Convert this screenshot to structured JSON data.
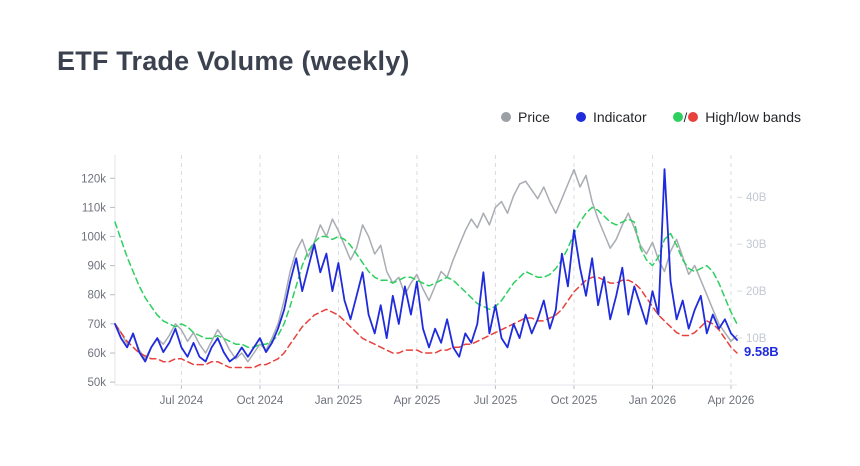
{
  "title": "ETF Trade Volume (weekly)",
  "legend": {
    "price": {
      "label": "Price",
      "color": "#9ba0a6"
    },
    "indicator": {
      "label": "Indicator",
      "color": "#1f2bdc"
    },
    "bands": {
      "label": "High/low bands",
      "separator": "/",
      "high_color": "#2dd05f",
      "low_color": "#e8413c"
    }
  },
  "chart_data": {
    "type": "line",
    "title": "ETF Trade Volume (weekly)",
    "x_unit": "week",
    "n_points": 104,
    "x_ticks": [
      {
        "label": "Jul 2024",
        "week": 11
      },
      {
        "label": "Oct 2024",
        "week": 24
      },
      {
        "label": "Jan 2025",
        "week": 37
      },
      {
        "label": "Apr 2025",
        "week": 50
      },
      {
        "label": "Jul 2025",
        "week": 63
      },
      {
        "label": "Oct 2025",
        "week": 76
      },
      {
        "label": "Jan 2026",
        "week": 89
      },
      {
        "label": "Apr 2026",
        "week": 102
      }
    ],
    "left_axis": {
      "unit": "k",
      "range": [
        49,
        128
      ],
      "ticks": [
        {
          "label": "50k",
          "value": 50
        },
        {
          "label": "60k",
          "value": 60
        },
        {
          "label": "70k",
          "value": 70
        },
        {
          "label": "80k",
          "value": 80
        },
        {
          "label": "90k",
          "value": 90
        },
        {
          "label": "100k",
          "value": 100
        },
        {
          "label": "110k",
          "value": 110
        },
        {
          "label": "120k",
          "value": 120
        }
      ]
    },
    "right_axis": {
      "unit": "B",
      "range": [
        0,
        49
      ],
      "ticks": [
        {
          "label": "10B",
          "value": 10
        },
        {
          "label": "20B",
          "value": 20
        },
        {
          "label": "30B",
          "value": 30
        },
        {
          "label": "40B",
          "value": 40
        }
      ]
    },
    "grid": {
      "vertical_dashed": true,
      "horizontal": false
    },
    "legend_position": "top-right",
    "series": [
      {
        "name": "Price",
        "axis": "left",
        "color": "#a9acb2",
        "style": "solid",
        "width": 1.5,
        "values": [
          70,
          67,
          63,
          66,
          61,
          58,
          62,
          65,
          63,
          66,
          70,
          68,
          64,
          67,
          63,
          60,
          64,
          68,
          65,
          61,
          58,
          60,
          57,
          60,
          63,
          61,
          65,
          70,
          78,
          88,
          95,
          99,
          93,
          98,
          104,
          100,
          106,
          102,
          97,
          92,
          96,
          104,
          100,
          94,
          97,
          88,
          84,
          86,
          80,
          84,
          87,
          82,
          78,
          83,
          88,
          86,
          92,
          97,
          102,
          106,
          103,
          108,
          104,
          110,
          112,
          108,
          114,
          118,
          119,
          116,
          113,
          117,
          112,
          108,
          113,
          118,
          123,
          117,
          121,
          112,
          106,
          101,
          96,
          99,
          104,
          108,
          103,
          97,
          94,
          98,
          92,
          88,
          95,
          99,
          93,
          87,
          90,
          85,
          80,
          75,
          70,
          67,
          64,
          66
        ]
      },
      {
        "name": "High band",
        "axis": "left",
        "color": "#2dd05f",
        "style": "dashed",
        "width": 1.5,
        "values": [
          105,
          99,
          93,
          88,
          83,
          79,
          76,
          73,
          71,
          70,
          69,
          70,
          69,
          67,
          66,
          65,
          65,
          66,
          65,
          64,
          63,
          63,
          62,
          62,
          63,
          63,
          64,
          66,
          70,
          76,
          83,
          90,
          95,
          98,
          100,
          100,
          99,
          100,
          99,
          97,
          94,
          91,
          88,
          86,
          85,
          85,
          84,
          85,
          86,
          86,
          85,
          84,
          83,
          84,
          85,
          86,
          85,
          83,
          81,
          79,
          77,
          76,
          75,
          76,
          78,
          81,
          84,
          86,
          88,
          87,
          86,
          86,
          87,
          89,
          92,
          96,
          101,
          105,
          108,
          110,
          109,
          107,
          105,
          104,
          105,
          106,
          105,
          96,
          92,
          90,
          93,
          99,
          101,
          97,
          92,
          89,
          88,
          89,
          90,
          88,
          84,
          79,
          74,
          70
        ]
      },
      {
        "name": "Low band",
        "axis": "left",
        "color": "#e8413c",
        "style": "dashed",
        "width": 1.5,
        "values": [
          70,
          67,
          64,
          62,
          60,
          59,
          58,
          58,
          57,
          57,
          58,
          58,
          57,
          56,
          56,
          56,
          57,
          57,
          56,
          55,
          55,
          55,
          55,
          55,
          56,
          56,
          57,
          58,
          60,
          63,
          66,
          69,
          71,
          73,
          74,
          75,
          74,
          73,
          71,
          69,
          67,
          65,
          64,
          63,
          62,
          61,
          60,
          60,
          61,
          61,
          61,
          60,
          60,
          60,
          61,
          61,
          62,
          62,
          63,
          63,
          64,
          65,
          66,
          67,
          68,
          69,
          70,
          71,
          72,
          72,
          71,
          71,
          72,
          73,
          75,
          78,
          81,
          83,
          85,
          86,
          86,
          85,
          84,
          84,
          85,
          85,
          84,
          82,
          79,
          76,
          73,
          71,
          69,
          67,
          66,
          66,
          67,
          69,
          71,
          70,
          68,
          65,
          62,
          60
        ]
      },
      {
        "name": "Indicator",
        "axis": "right",
        "color": "#1f2bdc",
        "style": "solid",
        "width": 1.8,
        "values": [
          13,
          10,
          8,
          11,
          7,
          5,
          8,
          10,
          7,
          9,
          12,
          8,
          6,
          9,
          6,
          5,
          8,
          10,
          7,
          5,
          6,
          8,
          6,
          8,
          10,
          7,
          9,
          12,
          16,
          22,
          27,
          20,
          25,
          30,
          24,
          28,
          20,
          26,
          18,
          14,
          19,
          24,
          15,
          11,
          17,
          10,
          19,
          13,
          21,
          15,
          22,
          12,
          8,
          12,
          9,
          14,
          8,
          6,
          11,
          9,
          13,
          24,
          11,
          17,
          10,
          8,
          13,
          10,
          15,
          11,
          14,
          18,
          12,
          16,
          28,
          21,
          33,
          25,
          19,
          27,
          17,
          23,
          14,
          19,
          25,
          15,
          21,
          17,
          13,
          20,
          15,
          46,
          22,
          14,
          18,
          12,
          16,
          19,
          11,
          15,
          12,
          14,
          11,
          9.58
        ]
      }
    ],
    "annotation": {
      "text": "9.58B",
      "series": "Indicator",
      "color": "#1f2bdc"
    }
  }
}
